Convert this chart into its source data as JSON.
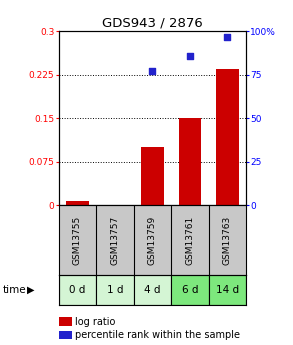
{
  "title": "GDS943 / 2876",
  "samples": [
    "GSM13755",
    "GSM13757",
    "GSM13759",
    "GSM13761",
    "GSM13763"
  ],
  "time_labels": [
    "0 d",
    "1 d",
    "4 d",
    "6 d",
    "14 d"
  ],
  "log_ratio": [
    0.008,
    0.0,
    0.1,
    0.15,
    0.235
  ],
  "percentile_rank": [
    null,
    null,
    77.0,
    85.5,
    96.5
  ],
  "ylim_left": [
    0.0,
    0.3
  ],
  "ylim_right": [
    0.0,
    100.0
  ],
  "yticks_left": [
    0,
    0.075,
    0.15,
    0.225,
    0.3
  ],
  "ytick_labels_left": [
    "0",
    "0.075",
    "0.15",
    "0.225",
    "0.3"
  ],
  "yticks_right": [
    0,
    25,
    50,
    75,
    100
  ],
  "ytick_labels_right": [
    "0",
    "25",
    "50",
    "75",
    "100%"
  ],
  "bar_color": "#cc0000",
  "point_color": "#2222cc",
  "bg_plot": "#ffffff",
  "bg_gsm": "#c8c8c8",
  "bg_time_colors": [
    "#d4f5d4",
    "#d4f5d4",
    "#d4f5d4",
    "#7de87d",
    "#7de87d"
  ],
  "time_label_left": "time",
  "bar_width": 0.6
}
